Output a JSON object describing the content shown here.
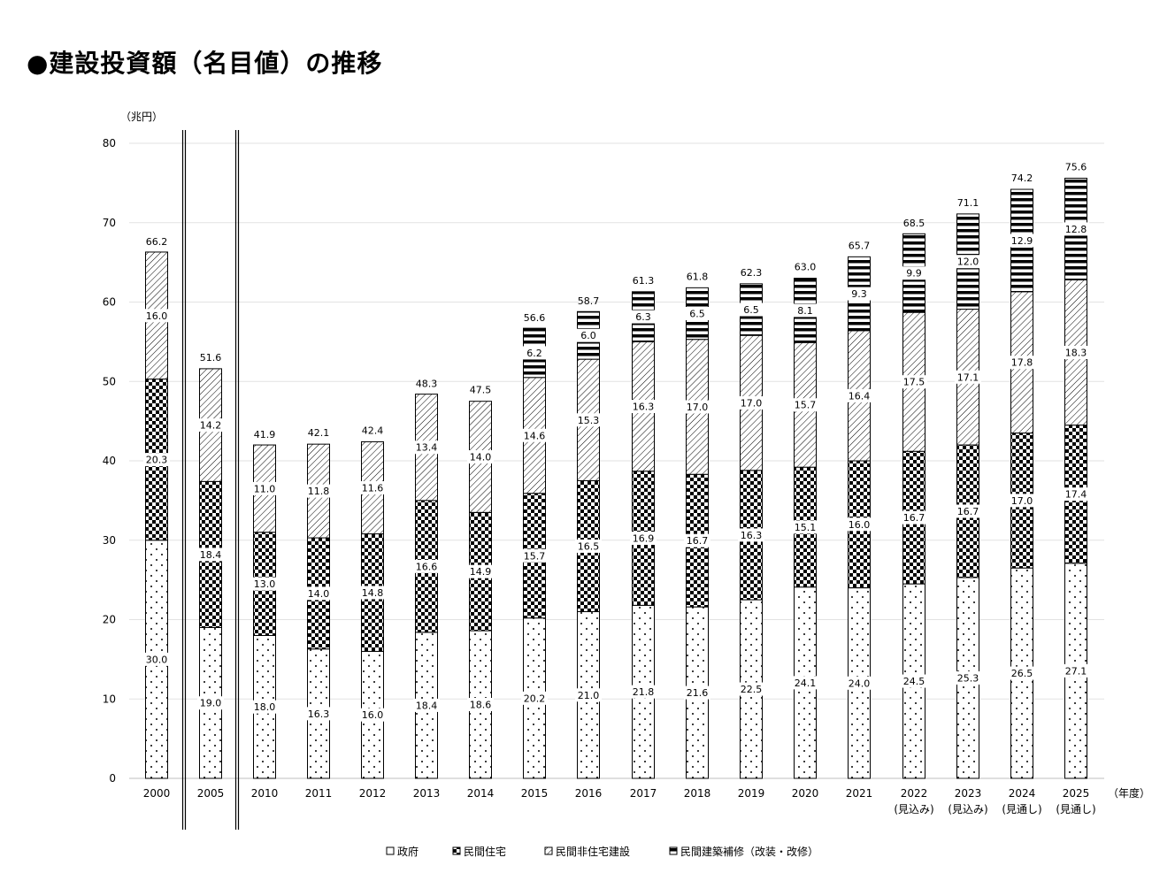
{
  "chart_data": {
    "type": "bar",
    "stacked": true,
    "title": "●建設投資額（名目値）の推移",
    "ylabel": "（兆円）",
    "xlabel": "（年度）",
    "ylim": [
      0,
      80
    ],
    "yticks": [
      0,
      10,
      20,
      30,
      40,
      50,
      60,
      70,
      80
    ],
    "grid": true,
    "legend": "bottom",
    "categories": [
      "2000",
      "2005",
      "2010",
      "2011",
      "2012",
      "2013",
      "2014",
      "2015",
      "2016",
      "2017",
      "2018",
      "2019",
      "2020",
      "2021",
      "2022",
      "2023",
      "2024",
      "2025"
    ],
    "category_notes": [
      "",
      "",
      "",
      "",
      "",
      "",
      "",
      "",
      "",
      "",
      "",
      "",
      "",
      "",
      "(見込み)",
      "(見込み)",
      "(見通し)",
      "(見通し)"
    ],
    "series": [
      {
        "name": "政府",
        "pattern": "dots",
        "values": [
          30.0,
          19.0,
          18.0,
          16.3,
          16.0,
          18.4,
          18.6,
          20.2,
          21.0,
          21.8,
          21.6,
          22.5,
          24.1,
          24.0,
          24.5,
          25.3,
          26.5,
          27.1
        ],
        "labels": [
          "30.0",
          "19.0",
          "18.0",
          "16.3",
          "16.0",
          "18.4",
          "18.6",
          "20.2",
          "21.0",
          "21.8",
          "21.6",
          "22.5",
          "24.1",
          "24.0",
          "24.5",
          "25.3",
          "26.5",
          "27.1"
        ]
      },
      {
        "name": "民間住宅",
        "pattern": "checker",
        "values": [
          20.3,
          18.4,
          13.0,
          14.0,
          14.8,
          16.6,
          14.9,
          15.7,
          16.5,
          16.9,
          16.7,
          16.3,
          15.1,
          16.0,
          16.7,
          16.7,
          17.0,
          17.4
        ],
        "labels": [
          "20.3",
          "18.4",
          "13.0",
          "14.0",
          "14.8",
          "16.6",
          "14.9",
          "15.7",
          "16.5",
          "16.9",
          "16.7",
          "16.3",
          "15.1",
          "16.0",
          "16.7",
          "16.7",
          "17.0",
          "17.4"
        ]
      },
      {
        "name": "民間非住宅建設",
        "pattern": "hatch",
        "values": [
          16.0,
          14.2,
          11.0,
          11.8,
          11.6,
          13.4,
          14.0,
          14.6,
          15.3,
          16.3,
          17.0,
          17.0,
          15.7,
          16.4,
          17.5,
          17.1,
          17.8,
          18.3
        ],
        "labels": [
          "16.0",
          "14.2",
          "11.0",
          "11.8",
          "11.6",
          "13.4",
          "14.0",
          "14.6",
          "15.3",
          "16.3",
          "17.0",
          "17.0",
          "15.7",
          "16.4",
          "17.5",
          "17.1",
          "17.8",
          "18.3"
        ]
      },
      {
        "name": "民間建築補修（改装・改修）",
        "pattern": "stripes",
        "values": [
          null,
          null,
          null,
          null,
          null,
          null,
          null,
          6.2,
          6.0,
          6.3,
          6.5,
          6.5,
          8.1,
          9.3,
          9.9,
          12.0,
          12.9,
          12.8
        ],
        "labels": [
          "",
          "",
          "",
          "",
          "",
          "",
          "",
          "6.2",
          "6.0",
          "6.3",
          "6.5",
          "6.5",
          "8.1",
          "9.3",
          "9.9",
          "12.0",
          "12.9",
          "12.8"
        ]
      }
    ],
    "totals": [
      66.2,
      51.6,
      41.9,
      42.1,
      42.4,
      48.3,
      47.5,
      56.6,
      58.7,
      61.3,
      61.8,
      62.3,
      63.0,
      65.7,
      68.5,
      71.1,
      74.2,
      75.6
    ],
    "total_labels": [
      "66.2",
      "51.6",
      "41.9",
      "42.1",
      "42.4",
      "48.3",
      "47.5",
      "56.6",
      "58.7",
      "61.3",
      "61.8",
      "62.3",
      "63.0",
      "65.7",
      "68.5",
      "71.1",
      "74.2",
      "75.6"
    ]
  }
}
